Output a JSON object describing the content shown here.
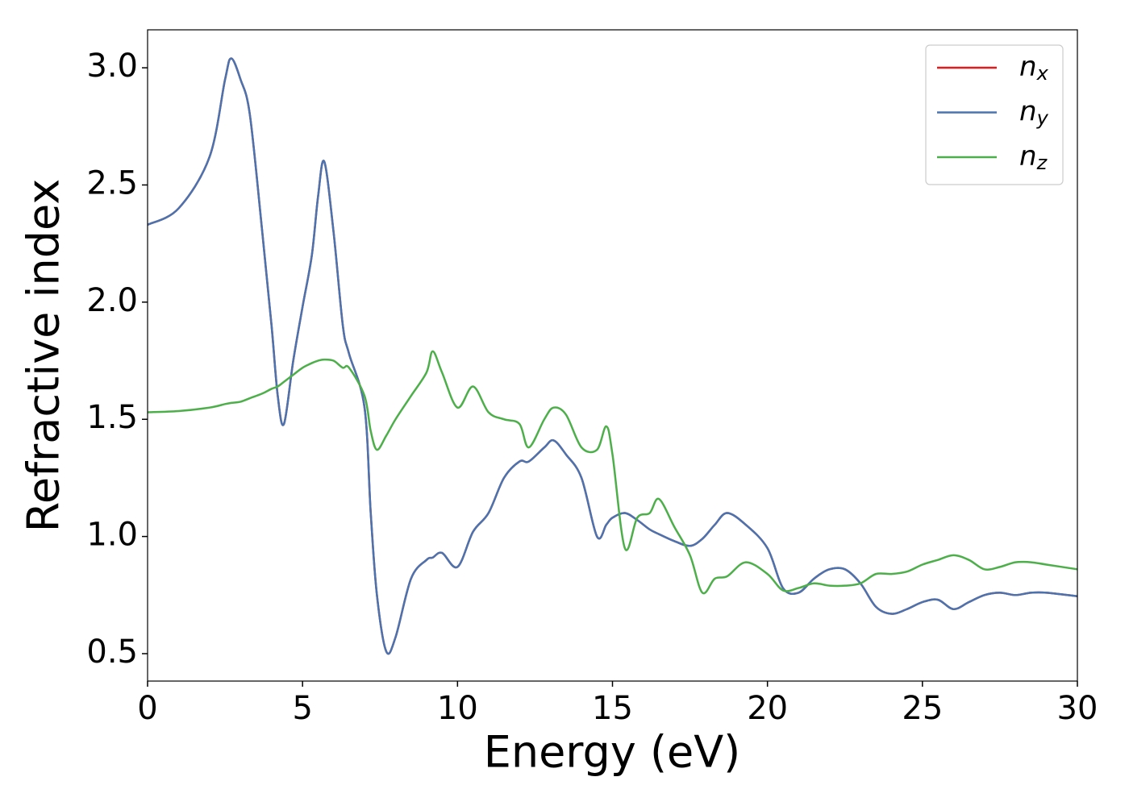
{
  "chart_data": {
    "type": "line",
    "xlabel": "Energy (eV)",
    "ylabel": "Refractive index",
    "x": [
      0,
      1,
      2,
      2.5,
      2.7,
      3,
      3.3,
      3.7,
      4,
      4.2,
      4.4,
      4.7,
      5,
      5.3,
      5.5,
      5.7,
      6,
      6.3,
      6.5,
      7,
      7.2,
      7.4,
      7.7,
      8,
      8.5,
      9,
      9.2,
      9.5,
      10,
      10.5,
      11,
      11.5,
      12,
      12.3,
      12.8,
      13.1,
      13.5,
      14,
      14.5,
      14.8,
      15,
      15.4,
      15.8,
      16.2,
      16.5,
      17,
      17.5,
      17.9,
      18.3,
      18.7,
      19.3,
      20,
      20.5,
      21,
      21.5,
      22,
      22.5,
      23,
      23.5,
      24,
      24.5,
      25,
      25.5,
      26,
      26.5,
      27,
      27.5,
      28,
      28.5,
      29,
      30
    ],
    "series": [
      {
        "name": "n_x",
        "color": "#e41a1c",
        "values": [
          2.33,
          2.4,
          2.62,
          2.95,
          3.04,
          2.95,
          2.8,
          2.3,
          1.9,
          1.6,
          1.48,
          1.75,
          1.98,
          2.2,
          2.45,
          2.6,
          2.3,
          1.9,
          1.78,
          1.55,
          1.1,
          0.75,
          0.51,
          0.57,
          0.82,
          0.9,
          0.91,
          0.93,
          0.87,
          1.02,
          1.1,
          1.25,
          1.32,
          1.32,
          1.38,
          1.41,
          1.35,
          1.25,
          1.0,
          1.05,
          1.08,
          1.1,
          1.07,
          1.03,
          1.01,
          0.98,
          0.96,
          0.99,
          1.05,
          1.1,
          1.05,
          0.95,
          0.78,
          0.76,
          0.82,
          0.86,
          0.86,
          0.8,
          0.7,
          0.67,
          0.69,
          0.72,
          0.73,
          0.69,
          0.72,
          0.75,
          0.76,
          0.75,
          0.76,
          0.76,
          0.745
        ]
      },
      {
        "name": "n_y",
        "color": "#4a74b0",
        "values": [
          2.33,
          2.4,
          2.62,
          2.95,
          3.04,
          2.95,
          2.8,
          2.3,
          1.9,
          1.6,
          1.48,
          1.75,
          1.98,
          2.2,
          2.45,
          2.6,
          2.3,
          1.9,
          1.78,
          1.55,
          1.1,
          0.75,
          0.51,
          0.57,
          0.82,
          0.9,
          0.91,
          0.93,
          0.87,
          1.02,
          1.1,
          1.25,
          1.32,
          1.32,
          1.38,
          1.41,
          1.35,
          1.25,
          1.0,
          1.05,
          1.08,
          1.1,
          1.07,
          1.03,
          1.01,
          0.98,
          0.96,
          0.99,
          1.05,
          1.1,
          1.05,
          0.95,
          0.78,
          0.76,
          0.82,
          0.86,
          0.86,
          0.8,
          0.7,
          0.67,
          0.69,
          0.72,
          0.73,
          0.69,
          0.72,
          0.75,
          0.76,
          0.75,
          0.76,
          0.76,
          0.745
        ]
      },
      {
        "name": "n_z",
        "color": "#4daf4a",
        "values": [
          1.53,
          1.535,
          1.55,
          1.565,
          1.57,
          1.575,
          1.59,
          1.61,
          1.63,
          1.64,
          1.66,
          1.69,
          1.72,
          1.74,
          1.75,
          1.755,
          1.75,
          1.72,
          1.72,
          1.6,
          1.45,
          1.37,
          1.43,
          1.5,
          1.6,
          1.7,
          1.79,
          1.7,
          1.55,
          1.64,
          1.53,
          1.5,
          1.48,
          1.38,
          1.5,
          1.55,
          1.52,
          1.38,
          1.37,
          1.47,
          1.35,
          0.95,
          1.08,
          1.1,
          1.16,
          1.04,
          0.92,
          0.76,
          0.82,
          0.83,
          0.89,
          0.84,
          0.77,
          0.78,
          0.8,
          0.79,
          0.79,
          0.8,
          0.84,
          0.84,
          0.85,
          0.88,
          0.9,
          0.92,
          0.9,
          0.86,
          0.87,
          0.89,
          0.89,
          0.88,
          0.86
        ]
      }
    ],
    "xlim": [
      0,
      30
    ],
    "xticks": [
      0,
      5,
      10,
      15,
      20,
      25,
      30
    ],
    "ylim": [
      0.383,
      3.162
    ],
    "yticks": [
      0.5,
      {
        "value": 1,
        "label": "1.0"
      },
      1.5,
      {
        "value": 2,
        "label": "2.0"
      },
      2.5,
      {
        "value": 3,
        "label": "3.0"
      }
    ],
    "grid": false,
    "legend": "upper right"
  }
}
